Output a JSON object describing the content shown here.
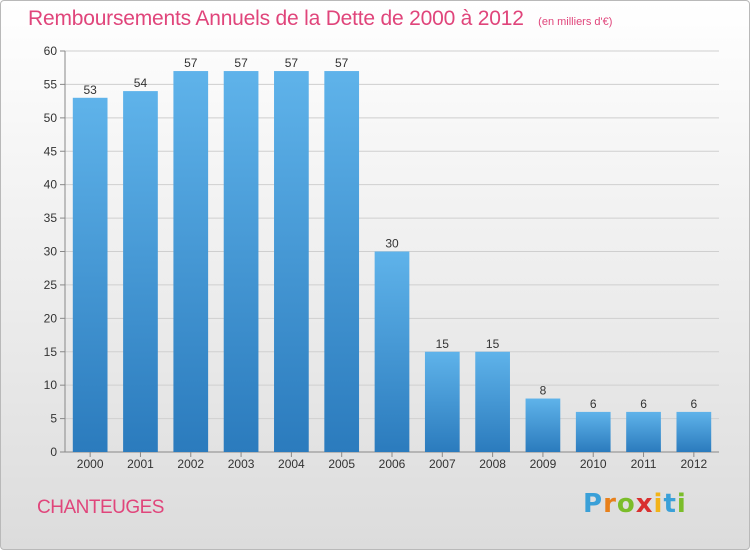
{
  "header": {
    "title": "Remboursements Annuels de la Dette de 2000 à 2012",
    "unit": "(en milliers d'€)"
  },
  "footer": {
    "commune": "CHANTEUGES",
    "logo": "Proxiti"
  },
  "colors": {
    "title": "#e0457b",
    "bar_top": "#5fb3ea",
    "bar_bottom": "#2b7bbd",
    "grid": "#cfcfcf"
  },
  "chart_data": {
    "type": "bar",
    "categories": [
      "2000",
      "2001",
      "2002",
      "2003",
      "2004",
      "2005",
      "2006",
      "2007",
      "2008",
      "2009",
      "2010",
      "2011",
      "2012"
    ],
    "values": [
      53,
      54,
      57,
      57,
      57,
      57,
      30,
      15,
      15,
      8,
      6,
      6,
      6
    ],
    "title": "Remboursements Annuels de la Dette de 2000 à 2012",
    "ylim": [
      0,
      60
    ],
    "yticks": [
      0,
      5,
      10,
      15,
      20,
      25,
      30,
      35,
      40,
      45,
      50,
      55,
      60
    ],
    "grid": true,
    "data_labels": true
  }
}
